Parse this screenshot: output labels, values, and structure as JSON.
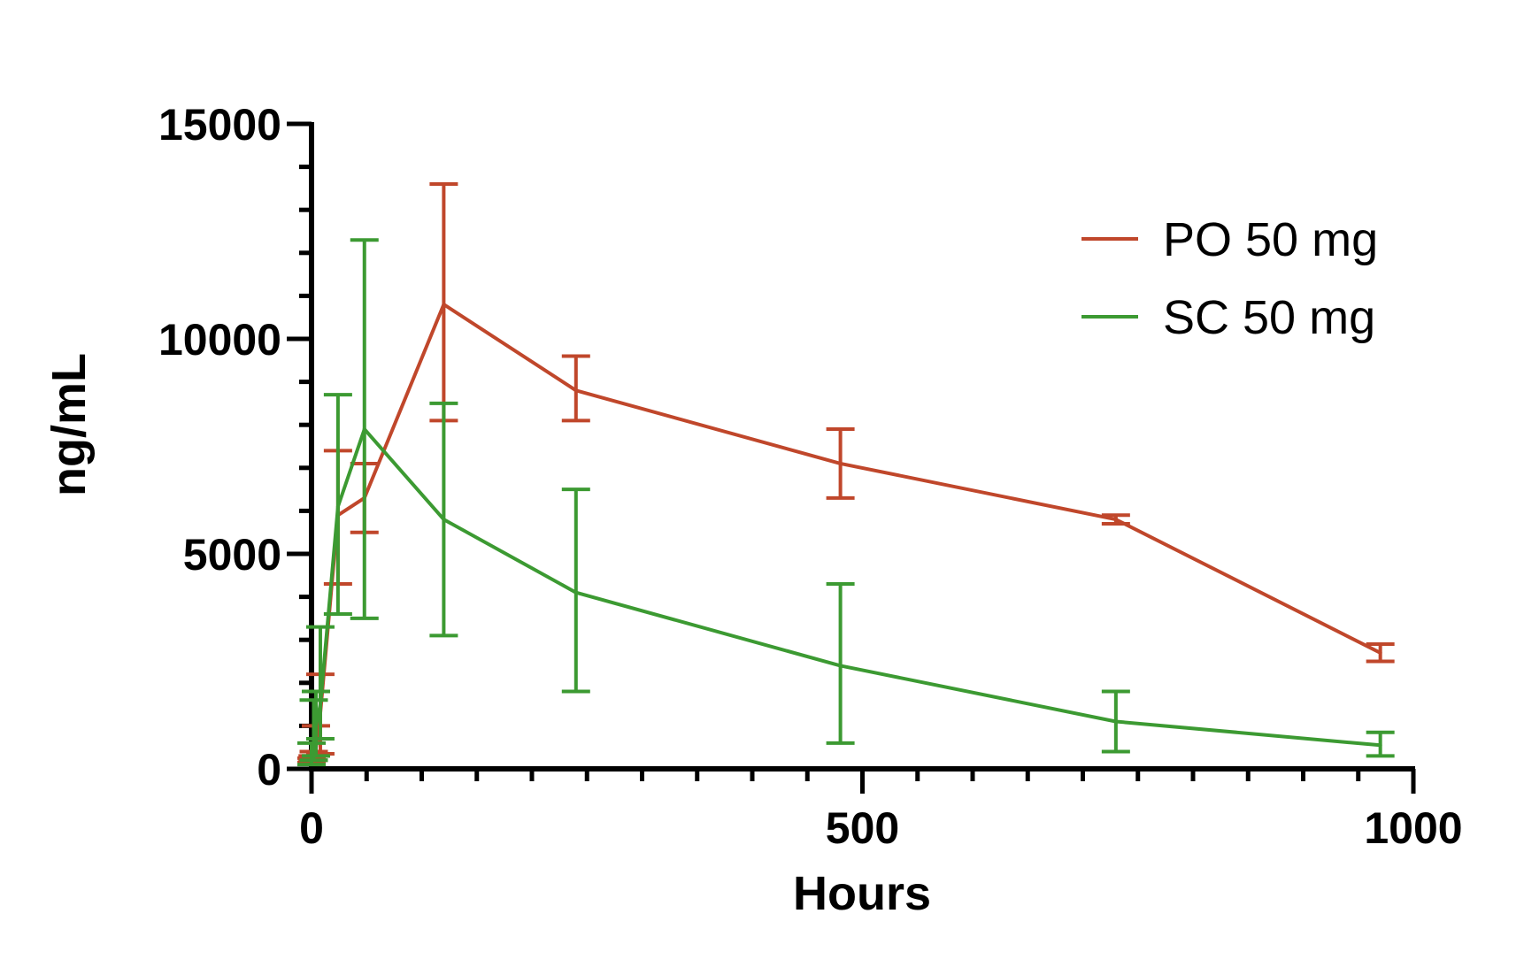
{
  "chart_data": {
    "type": "line",
    "xlabel": "Hours",
    "ylabel": "ng/mL",
    "xlim": [
      0,
      1000
    ],
    "ylim": [
      0,
      15000
    ],
    "x_ticks": [
      0,
      500,
      1000
    ],
    "y_ticks": [
      0,
      5000,
      10000,
      15000
    ],
    "x_tick_labels": [
      "0",
      "500",
      "1000"
    ],
    "y_tick_labels": [
      "0",
      "5000",
      "10000",
      "15000"
    ],
    "x_minor_step": 50,
    "y_minor_step": 1000,
    "grid": false,
    "legend_position": "top-right",
    "series": [
      {
        "name": "PO 50 mg",
        "color": "#c0472b",
        "points": [
          {
            "x": 0,
            "y": 200,
            "lo": 150,
            "hi": 250
          },
          {
            "x": 1,
            "y": 250,
            "lo": 200,
            "hi": 300
          },
          {
            "x": 2,
            "y": 300,
            "lo": 200,
            "hi": 400
          },
          {
            "x": 4,
            "y": 500,
            "lo": 300,
            "hi": 1000
          },
          {
            "x": 8,
            "y": 1300,
            "lo": 350,
            "hi": 2200
          },
          {
            "x": 24,
            "y": 5900,
            "lo": 4300,
            "hi": 7400
          },
          {
            "x": 48,
            "y": 6300,
            "lo": 5500,
            "hi": 7100
          },
          {
            "x": 120,
            "y": 10800,
            "lo": 8100,
            "hi": 13600
          },
          {
            "x": 240,
            "y": 8800,
            "lo": 8100,
            "hi": 9600
          },
          {
            "x": 480,
            "y": 7100,
            "lo": 6300,
            "hi": 7900
          },
          {
            "x": 730,
            "y": 5800,
            "lo": 5700,
            "hi": 5900
          },
          {
            "x": 970,
            "y": 2700,
            "lo": 2500,
            "hi": 2900
          }
        ]
      },
      {
        "name": "SC 50 mg",
        "color": "#3c9a32",
        "points": [
          {
            "x": 0,
            "y": 300,
            "lo": 100,
            "hi": 600
          },
          {
            "x": 2,
            "y": 500,
            "lo": 200,
            "hi": 1600
          },
          {
            "x": 4,
            "y": 1000,
            "lo": 300,
            "hi": 1800
          },
          {
            "x": 8,
            "y": 1500,
            "lo": 700,
            "hi": 3300
          },
          {
            "x": 24,
            "y": 6100,
            "lo": 3600,
            "hi": 8700
          },
          {
            "x": 48,
            "y": 7900,
            "lo": 3500,
            "hi": 12300
          },
          {
            "x": 120,
            "y": 5800,
            "lo": 3100,
            "hi": 8500
          },
          {
            "x": 240,
            "y": 4100,
            "lo": 1800,
            "hi": 6500
          },
          {
            "x": 480,
            "y": 2400,
            "lo": 600,
            "hi": 4300
          },
          {
            "x": 730,
            "y": 1100,
            "lo": 400,
            "hi": 1800
          },
          {
            "x": 970,
            "y": 550,
            "lo": 300,
            "hi": 850
          }
        ]
      }
    ]
  }
}
